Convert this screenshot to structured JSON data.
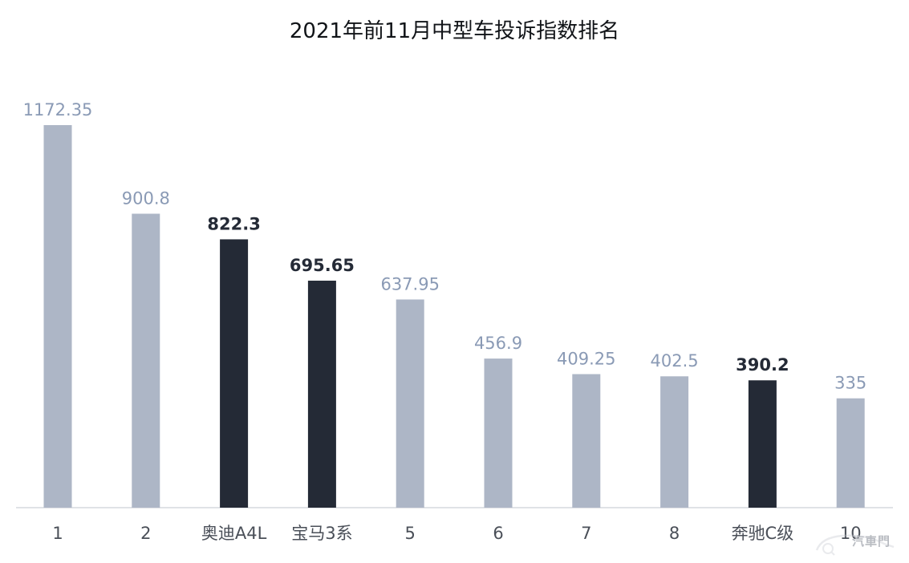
{
  "chart_data": {
    "type": "bar",
    "title": "2021年前11月中型车投诉指数排名",
    "categories": [
      "1",
      "2",
      "奥迪A4L",
      "宝马3系",
      "5",
      "6",
      "7",
      "8",
      "奔驰C级",
      "10"
    ],
    "values": [
      1172.35,
      900.8,
      822.3,
      695.65,
      637.95,
      456.9,
      409.25,
      402.5,
      390.2,
      335
    ],
    "value_labels": [
      "1172.35",
      "900.8",
      "822.3",
      "695.65",
      "637.95",
      "456.9",
      "409.25",
      "402.5",
      "390.2",
      "335"
    ],
    "highlighted": [
      false,
      false,
      true,
      true,
      false,
      false,
      false,
      false,
      true,
      false
    ],
    "ylim": [
      0,
      1172.35
    ],
    "grid": false,
    "legend": "none",
    "colors": {
      "bar_default": "#adb6c6",
      "bar_highlight": "#242a36",
      "label_default": "#8a9ab5",
      "label_highlight": "#242a36",
      "category_text": "#4a4f58",
      "axis_line": "#d6d9de"
    }
  },
  "watermark": {
    "text": "汽車門",
    "icon": "car-logo-icon"
  }
}
